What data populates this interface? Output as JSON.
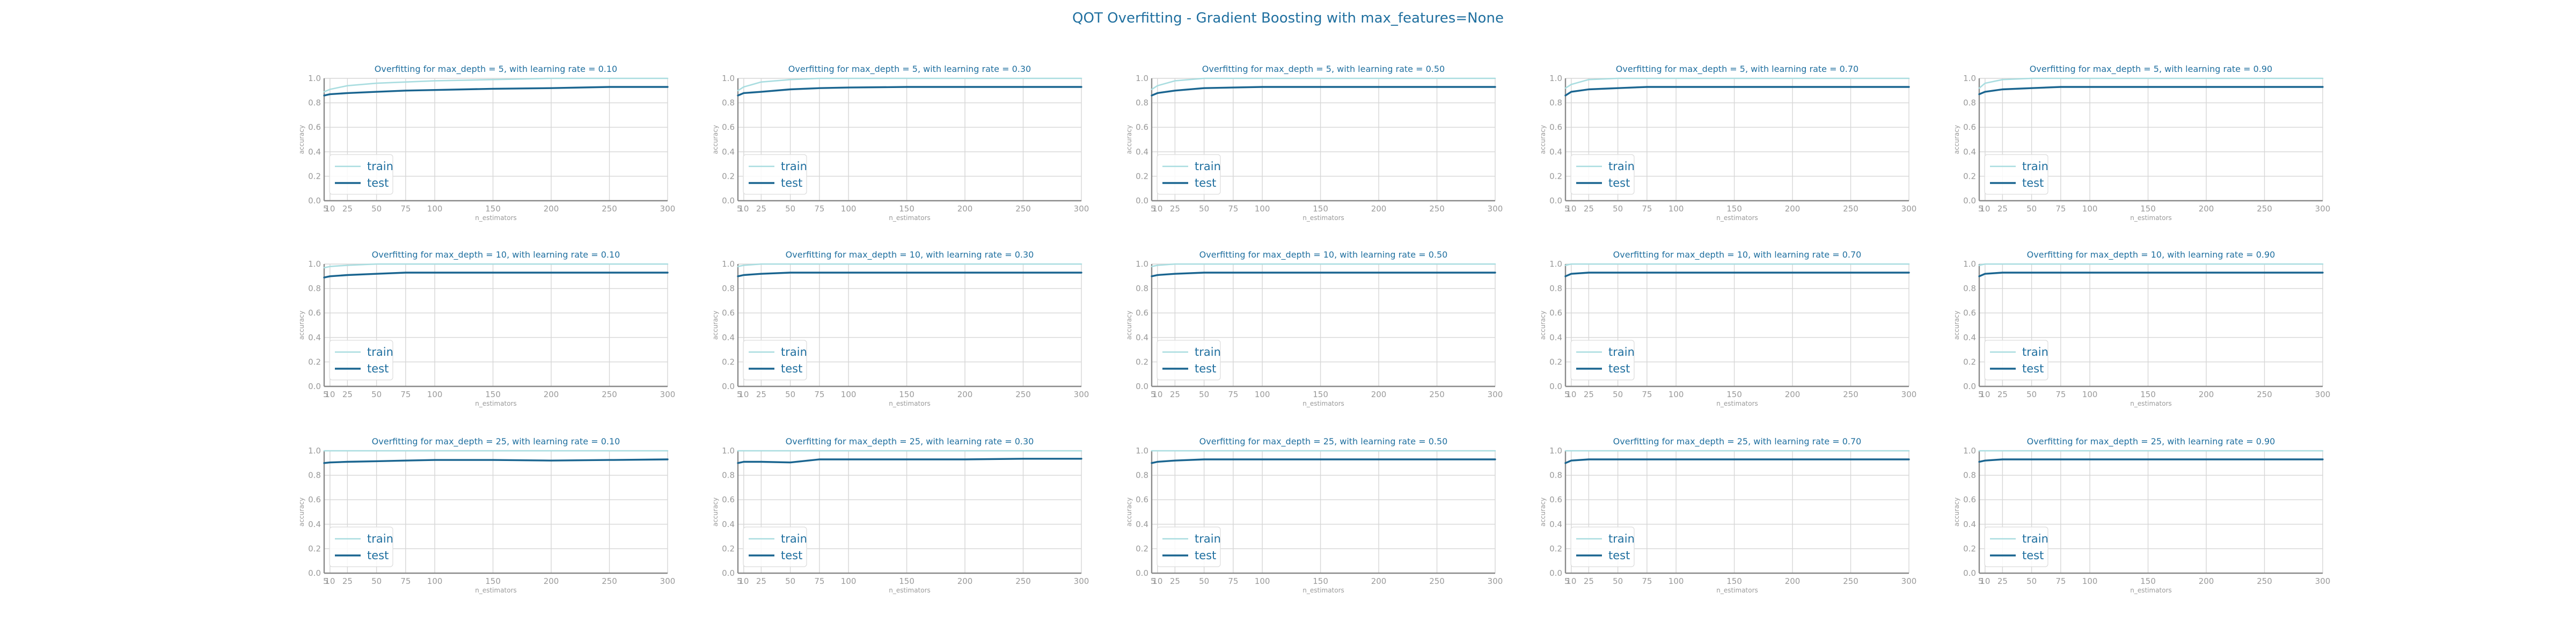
{
  "figure": {
    "suptitle": "QOT Overfitting - Gradient Boosting with max_features=None"
  },
  "colors": {
    "train": "#a9dde0",
    "test": "#1a6590",
    "title": "#1f6f9f",
    "tick": "#9a9a9a",
    "grid": "#d6d6d6",
    "spine": "#8a8a8a"
  },
  "chart_data": [
    {
      "type": "line",
      "title": "Overfitting for max_depth = 5, with learning rate = 0.10",
      "xlabel": "n_estimators",
      "ylabel": "accuracy",
      "xticks": [
        5,
        10,
        25,
        50,
        75,
        100,
        150,
        200,
        250,
        300
      ],
      "yticks": [
        0.0,
        0.2,
        0.4,
        0.6,
        0.8,
        1.0
      ],
      "xlim": [
        5,
        300
      ],
      "ylim": [
        0.0,
        1.0
      ],
      "grid": true,
      "legend_position": "lower-left",
      "categories": [
        5,
        10,
        25,
        50,
        75,
        100,
        150,
        200,
        250,
        300
      ],
      "series": [
        {
          "name": "train",
          "values": [
            0.89,
            0.91,
            0.94,
            0.96,
            0.97,
            0.98,
            0.99,
            1.0,
            1.0,
            1.0
          ]
        },
        {
          "name": "test",
          "values": [
            0.86,
            0.87,
            0.88,
            0.89,
            0.9,
            0.905,
            0.915,
            0.92,
            0.93,
            0.93
          ]
        }
      ]
    },
    {
      "type": "line",
      "title": "Overfitting for max_depth = 5, with learning rate = 0.30",
      "xlabel": "n_estimators",
      "ylabel": "accuracy",
      "xticks": [
        5,
        10,
        25,
        50,
        75,
        100,
        150,
        200,
        250,
        300
      ],
      "yticks": [
        0.0,
        0.2,
        0.4,
        0.6,
        0.8,
        1.0
      ],
      "xlim": [
        5,
        300
      ],
      "ylim": [
        0.0,
        1.0
      ],
      "grid": true,
      "legend_position": "lower-left",
      "categories": [
        5,
        10,
        25,
        50,
        75,
        100,
        150,
        200,
        250,
        300
      ],
      "series": [
        {
          "name": "train",
          "values": [
            0.9,
            0.93,
            0.97,
            0.99,
            1.0,
            1.0,
            1.0,
            1.0,
            1.0,
            1.0
          ]
        },
        {
          "name": "test",
          "values": [
            0.86,
            0.88,
            0.89,
            0.91,
            0.92,
            0.925,
            0.93,
            0.93,
            0.93,
            0.93
          ]
        }
      ]
    },
    {
      "type": "line",
      "title": "Overfitting for max_depth = 5, with learning rate = 0.50",
      "xlabel": "n_estimators",
      "ylabel": "accuracy",
      "xticks": [
        5,
        10,
        25,
        50,
        75,
        100,
        150,
        200,
        250,
        300
      ],
      "yticks": [
        0.0,
        0.2,
        0.4,
        0.6,
        0.8,
        1.0
      ],
      "xlim": [
        5,
        300
      ],
      "ylim": [
        0.0,
        1.0
      ],
      "grid": true,
      "legend_position": "lower-left",
      "categories": [
        5,
        10,
        25,
        50,
        75,
        100,
        150,
        200,
        250,
        300
      ],
      "series": [
        {
          "name": "train",
          "values": [
            0.91,
            0.94,
            0.98,
            1.0,
            1.0,
            1.0,
            1.0,
            1.0,
            1.0,
            1.0
          ]
        },
        {
          "name": "test",
          "values": [
            0.86,
            0.88,
            0.9,
            0.92,
            0.925,
            0.93,
            0.93,
            0.93,
            0.93,
            0.93
          ]
        }
      ]
    },
    {
      "type": "line",
      "title": "Overfitting for max_depth = 5, with learning rate = 0.70",
      "xlabel": "n_estimators",
      "ylabel": "accuracy",
      "xticks": [
        5,
        10,
        25,
        50,
        75,
        100,
        150,
        200,
        250,
        300
      ],
      "yticks": [
        0.0,
        0.2,
        0.4,
        0.6,
        0.8,
        1.0
      ],
      "xlim": [
        5,
        300
      ],
      "ylim": [
        0.0,
        1.0
      ],
      "grid": true,
      "legend_position": "lower-left",
      "categories": [
        5,
        10,
        25,
        50,
        75,
        100,
        150,
        200,
        250,
        300
      ],
      "series": [
        {
          "name": "train",
          "values": [
            0.92,
            0.95,
            0.99,
            1.0,
            1.0,
            1.0,
            1.0,
            1.0,
            1.0,
            1.0
          ]
        },
        {
          "name": "test",
          "values": [
            0.86,
            0.89,
            0.91,
            0.92,
            0.93,
            0.93,
            0.93,
            0.93,
            0.93,
            0.93
          ]
        }
      ]
    },
    {
      "type": "line",
      "title": "Overfitting for max_depth = 5, with learning rate = 0.90",
      "xlabel": "n_estimators",
      "ylabel": "accuracy",
      "xticks": [
        5,
        10,
        25,
        50,
        75,
        100,
        150,
        200,
        250,
        300
      ],
      "yticks": [
        0.0,
        0.2,
        0.4,
        0.6,
        0.8,
        1.0
      ],
      "xlim": [
        5,
        300
      ],
      "ylim": [
        0.0,
        1.0
      ],
      "grid": true,
      "legend_position": "lower-left",
      "categories": [
        5,
        10,
        25,
        50,
        75,
        100,
        150,
        200,
        250,
        300
      ],
      "series": [
        {
          "name": "train",
          "values": [
            0.92,
            0.96,
            0.99,
            1.0,
            1.0,
            1.0,
            1.0,
            1.0,
            1.0,
            1.0
          ]
        },
        {
          "name": "test",
          "values": [
            0.87,
            0.89,
            0.91,
            0.92,
            0.93,
            0.93,
            0.93,
            0.93,
            0.93,
            0.93
          ]
        }
      ]
    },
    {
      "type": "line",
      "title": "Overfitting for max_depth = 10, with learning rate = 0.10",
      "xlabel": "n_estimators",
      "ylabel": "accuracy",
      "xticks": [
        5,
        10,
        25,
        50,
        75,
        100,
        150,
        200,
        250,
        300
      ],
      "yticks": [
        0.0,
        0.2,
        0.4,
        0.6,
        0.8,
        1.0
      ],
      "xlim": [
        5,
        300
      ],
      "ylim": [
        0.0,
        1.0
      ],
      "grid": true,
      "legend_position": "lower-left",
      "categories": [
        5,
        10,
        25,
        50,
        75,
        100,
        150,
        200,
        250,
        300
      ],
      "series": [
        {
          "name": "train",
          "values": [
            0.97,
            0.98,
            0.99,
            1.0,
            1.0,
            1.0,
            1.0,
            1.0,
            1.0,
            1.0
          ]
        },
        {
          "name": "test",
          "values": [
            0.89,
            0.9,
            0.91,
            0.92,
            0.93,
            0.93,
            0.93,
            0.93,
            0.93,
            0.93
          ]
        }
      ]
    },
    {
      "type": "line",
      "title": "Overfitting for max_depth = 10, with learning rate = 0.30",
      "xlabel": "n_estimators",
      "ylabel": "accuracy",
      "xticks": [
        5,
        10,
        25,
        50,
        75,
        100,
        150,
        200,
        250,
        300
      ],
      "yticks": [
        0.0,
        0.2,
        0.4,
        0.6,
        0.8,
        1.0
      ],
      "xlim": [
        5,
        300
      ],
      "ylim": [
        0.0,
        1.0
      ],
      "grid": true,
      "legend_position": "lower-left",
      "categories": [
        5,
        10,
        25,
        50,
        75,
        100,
        150,
        200,
        250,
        300
      ],
      "series": [
        {
          "name": "train",
          "values": [
            0.98,
            0.99,
            1.0,
            1.0,
            1.0,
            1.0,
            1.0,
            1.0,
            1.0,
            1.0
          ]
        },
        {
          "name": "test",
          "values": [
            0.9,
            0.91,
            0.92,
            0.93,
            0.93,
            0.93,
            0.93,
            0.93,
            0.93,
            0.93
          ]
        }
      ]
    },
    {
      "type": "line",
      "title": "Overfitting for max_depth = 10, with learning rate = 0.50",
      "xlabel": "n_estimators",
      "ylabel": "accuracy",
      "xticks": [
        5,
        10,
        25,
        50,
        75,
        100,
        150,
        200,
        250,
        300
      ],
      "yticks": [
        0.0,
        0.2,
        0.4,
        0.6,
        0.8,
        1.0
      ],
      "xlim": [
        5,
        300
      ],
      "ylim": [
        0.0,
        1.0
      ],
      "grid": true,
      "legend_position": "lower-left",
      "categories": [
        5,
        10,
        25,
        50,
        75,
        100,
        150,
        200,
        250,
        300
      ],
      "series": [
        {
          "name": "train",
          "values": [
            0.98,
            0.99,
            1.0,
            1.0,
            1.0,
            1.0,
            1.0,
            1.0,
            1.0,
            1.0
          ]
        },
        {
          "name": "test",
          "values": [
            0.9,
            0.91,
            0.92,
            0.93,
            0.93,
            0.93,
            0.93,
            0.93,
            0.93,
            0.93
          ]
        }
      ]
    },
    {
      "type": "line",
      "title": "Overfitting for max_depth = 10, with learning rate = 0.70",
      "xlabel": "n_estimators",
      "ylabel": "accuracy",
      "xticks": [
        5,
        10,
        25,
        50,
        75,
        100,
        150,
        200,
        250,
        300
      ],
      "yticks": [
        0.0,
        0.2,
        0.4,
        0.6,
        0.8,
        1.0
      ],
      "xlim": [
        5,
        300
      ],
      "ylim": [
        0.0,
        1.0
      ],
      "grid": true,
      "legend_position": "lower-left",
      "categories": [
        5,
        10,
        25,
        50,
        75,
        100,
        150,
        200,
        250,
        300
      ],
      "series": [
        {
          "name": "train",
          "values": [
            0.99,
            1.0,
            1.0,
            1.0,
            1.0,
            1.0,
            1.0,
            1.0,
            1.0,
            1.0
          ]
        },
        {
          "name": "test",
          "values": [
            0.9,
            0.92,
            0.93,
            0.93,
            0.93,
            0.93,
            0.93,
            0.93,
            0.93,
            0.93
          ]
        }
      ]
    },
    {
      "type": "line",
      "title": "Overfitting for max_depth = 10, with learning rate = 0.90",
      "xlabel": "n_estimators",
      "ylabel": "accuracy",
      "xticks": [
        5,
        10,
        25,
        50,
        75,
        100,
        150,
        200,
        250,
        300
      ],
      "yticks": [
        0.0,
        0.2,
        0.4,
        0.6,
        0.8,
        1.0
      ],
      "xlim": [
        5,
        300
      ],
      "ylim": [
        0.0,
        1.0
      ],
      "grid": true,
      "legend_position": "lower-left",
      "categories": [
        5,
        10,
        25,
        50,
        75,
        100,
        150,
        200,
        250,
        300
      ],
      "series": [
        {
          "name": "train",
          "values": [
            0.99,
            1.0,
            1.0,
            1.0,
            1.0,
            1.0,
            1.0,
            1.0,
            1.0,
            1.0
          ]
        },
        {
          "name": "test",
          "values": [
            0.9,
            0.92,
            0.93,
            0.93,
            0.93,
            0.93,
            0.93,
            0.93,
            0.93,
            0.93
          ]
        }
      ]
    },
    {
      "type": "line",
      "title": "Overfitting for max_depth = 25, with learning rate = 0.10",
      "xlabel": "n_estimators",
      "ylabel": "accuracy",
      "xticks": [
        5,
        10,
        25,
        50,
        75,
        100,
        150,
        200,
        250,
        300
      ],
      "yticks": [
        0.0,
        0.2,
        0.4,
        0.6,
        0.8,
        1.0
      ],
      "xlim": [
        5,
        300
      ],
      "ylim": [
        0.0,
        1.0
      ],
      "grid": true,
      "legend_position": "lower-left",
      "categories": [
        5,
        10,
        25,
        50,
        75,
        100,
        150,
        200,
        250,
        300
      ],
      "series": [
        {
          "name": "train",
          "values": [
            1.0,
            1.0,
            1.0,
            1.0,
            1.0,
            1.0,
            1.0,
            1.0,
            1.0,
            1.0
          ]
        },
        {
          "name": "test",
          "values": [
            0.9,
            0.905,
            0.91,
            0.915,
            0.92,
            0.925,
            0.925,
            0.92,
            0.925,
            0.93
          ]
        }
      ]
    },
    {
      "type": "line",
      "title": "Overfitting for max_depth = 25, with learning rate = 0.30",
      "xlabel": "n_estimators",
      "ylabel": "accuracy",
      "xticks": [
        5,
        10,
        25,
        50,
        75,
        100,
        150,
        200,
        250,
        300
      ],
      "yticks": [
        0.0,
        0.2,
        0.4,
        0.6,
        0.8,
        1.0
      ],
      "xlim": [
        5,
        300
      ],
      "ylim": [
        0.0,
        1.0
      ],
      "grid": true,
      "legend_position": "lower-left",
      "categories": [
        5,
        10,
        25,
        50,
        75,
        100,
        150,
        200,
        250,
        300
      ],
      "series": [
        {
          "name": "train",
          "values": [
            1.0,
            1.0,
            1.0,
            1.0,
            1.0,
            1.0,
            1.0,
            1.0,
            1.0,
            1.0
          ]
        },
        {
          "name": "test",
          "values": [
            0.9,
            0.91,
            0.91,
            0.905,
            0.93,
            0.93,
            0.93,
            0.93,
            0.935,
            0.935
          ]
        }
      ]
    },
    {
      "type": "line",
      "title": "Overfitting for max_depth = 25, with learning rate = 0.50",
      "xlabel": "n_estimators",
      "ylabel": "accuracy",
      "xticks": [
        5,
        10,
        25,
        50,
        75,
        100,
        150,
        200,
        250,
        300
      ],
      "yticks": [
        0.0,
        0.2,
        0.4,
        0.6,
        0.8,
        1.0
      ],
      "xlim": [
        5,
        300
      ],
      "ylim": [
        0.0,
        1.0
      ],
      "grid": true,
      "legend_position": "lower-left",
      "categories": [
        5,
        10,
        25,
        50,
        75,
        100,
        150,
        200,
        250,
        300
      ],
      "series": [
        {
          "name": "train",
          "values": [
            1.0,
            1.0,
            1.0,
            1.0,
            1.0,
            1.0,
            1.0,
            1.0,
            1.0,
            1.0
          ]
        },
        {
          "name": "test",
          "values": [
            0.9,
            0.91,
            0.92,
            0.93,
            0.93,
            0.93,
            0.93,
            0.93,
            0.93,
            0.93
          ]
        }
      ]
    },
    {
      "type": "line",
      "title": "Overfitting for max_depth = 25, with learning rate = 0.70",
      "xlabel": "n_estimators",
      "ylabel": "accuracy",
      "xticks": [
        5,
        10,
        25,
        50,
        75,
        100,
        150,
        200,
        250,
        300
      ],
      "yticks": [
        0.0,
        0.2,
        0.4,
        0.6,
        0.8,
        1.0
      ],
      "xlim": [
        5,
        300
      ],
      "ylim": [
        0.0,
        1.0
      ],
      "grid": true,
      "legend_position": "lower-left",
      "categories": [
        5,
        10,
        25,
        50,
        75,
        100,
        150,
        200,
        250,
        300
      ],
      "series": [
        {
          "name": "train",
          "values": [
            1.0,
            1.0,
            1.0,
            1.0,
            1.0,
            1.0,
            1.0,
            1.0,
            1.0,
            1.0
          ]
        },
        {
          "name": "test",
          "values": [
            0.9,
            0.92,
            0.93,
            0.93,
            0.93,
            0.93,
            0.93,
            0.93,
            0.93,
            0.93
          ]
        }
      ]
    },
    {
      "type": "line",
      "title": "Overfitting for max_depth = 25, with learning rate = 0.90",
      "xlabel": "n_estimators",
      "ylabel": "accuracy",
      "xticks": [
        5,
        10,
        25,
        50,
        75,
        100,
        150,
        200,
        250,
        300
      ],
      "yticks": [
        0.0,
        0.2,
        0.4,
        0.6,
        0.8,
        1.0
      ],
      "xlim": [
        5,
        300
      ],
      "ylim": [
        0.0,
        1.0
      ],
      "grid": true,
      "legend_position": "lower-left",
      "categories": [
        5,
        10,
        25,
        50,
        75,
        100,
        150,
        200,
        250,
        300
      ],
      "series": [
        {
          "name": "train",
          "values": [
            1.0,
            1.0,
            1.0,
            1.0,
            1.0,
            1.0,
            1.0,
            1.0,
            1.0,
            1.0
          ]
        },
        {
          "name": "test",
          "values": [
            0.91,
            0.92,
            0.93,
            0.93,
            0.93,
            0.93,
            0.93,
            0.93,
            0.93,
            0.93
          ]
        }
      ]
    }
  ]
}
